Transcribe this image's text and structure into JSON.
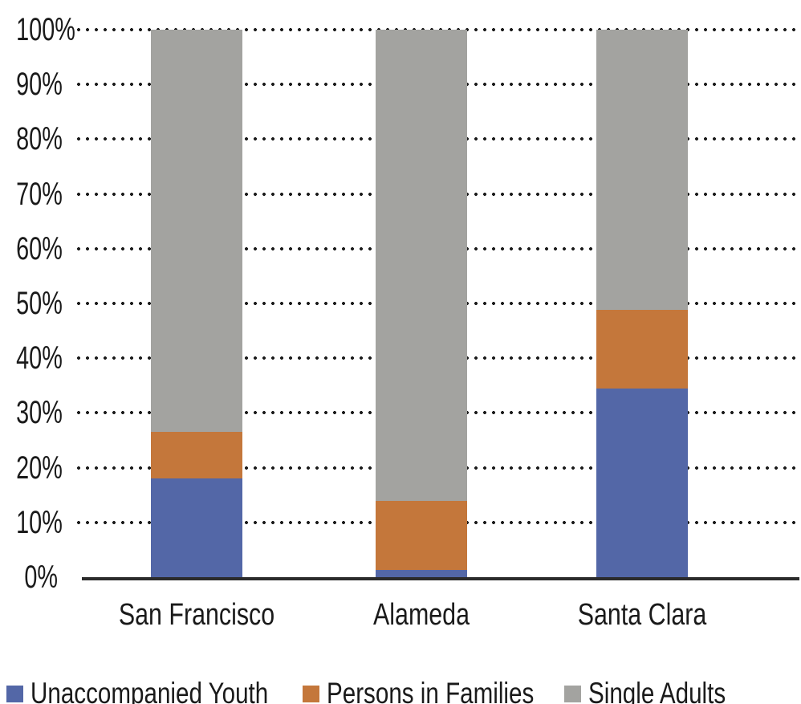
{
  "chart_data": {
    "type": "bar",
    "stacked": true,
    "title": "",
    "xlabel": "",
    "ylabel": "",
    "categories": [
      "San Francisco",
      "Alameda",
      "Santa Clara"
    ],
    "series": [
      {
        "name": "Unaccompanied Youth",
        "color": "#5367a7",
        "values": [
          18,
          1.3,
          34.5
        ]
      },
      {
        "name": "Persons in Families",
        "color": "#c4773b",
        "values": [
          8.5,
          12.7,
          14.3
        ]
      },
      {
        "name": "Single Adults",
        "color": "#a3a3a0",
        "values": [
          73.5,
          86,
          51.2
        ]
      }
    ],
    "ylim": [
      0,
      100
    ],
    "y_ticks": [
      0,
      10,
      20,
      30,
      40,
      50,
      60,
      70,
      80,
      90,
      100
    ],
    "y_tick_labels": [
      "0%",
      "10%",
      "20%",
      "30%",
      "40%",
      "50%",
      "60%",
      "70%",
      "80%",
      "90%",
      "100%"
    ],
    "grid": "horizontal-dotted",
    "legend_position": "bottom-left"
  },
  "colors": {
    "axis": "#2b2b2b",
    "grid_dots": "#1c1c1c",
    "text": "#1a1a1a",
    "background": "#ffffff"
  }
}
